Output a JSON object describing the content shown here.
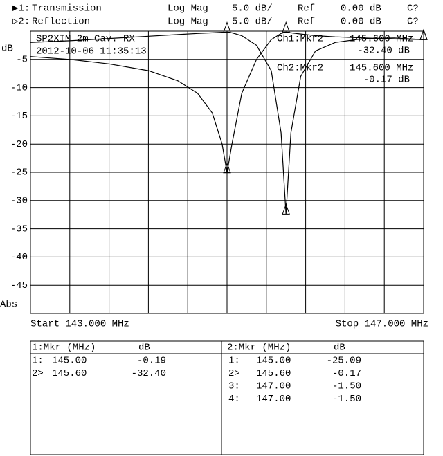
{
  "chart_data": {
    "type": "line",
    "channels": [
      {
        "prefix": "▶1:",
        "format": "Log Mag",
        "scale": "5.0 dB/",
        "ref_label": "Ref",
        "ref": "0.00 dB",
        "cal": "C?"
      },
      {
        "prefix": "▷2:",
        "format": "Log Mag",
        "scale": "5.0 dB/",
        "ref_label": "Ref",
        "ref": "0.00 dB",
        "cal": "C?"
      }
    ],
    "title": "SP2XIM 2m Cav. RX",
    "subtitle": "2012-10-06 11:35:13",
    "ylabel": "dB",
    "ymode": "Abs",
    "start_label": "Start 143.000 MHz",
    "stop_label": "Stop 147.000 MHz",
    "marker_readouts": [
      {
        "name": "Ch1:Mkr2",
        "freq": "145.600 MHz",
        "value": "-32.40 dB"
      },
      {
        "name": "Ch2:Mkr2",
        "freq": "145.600 MHz",
        "value": "-0.17 dB"
      }
    ],
    "x": [
      143,
      143.4,
      143.8,
      144.2,
      144.5,
      144.7,
      144.85,
      144.95,
      145.0,
      145.05,
      145.15,
      145.3,
      145.45,
      145.55,
      145.6,
      145.65,
      145.75,
      145.9,
      146.1,
      146.4,
      146.7,
      147
    ],
    "series": [
      {
        "name": "Transmission",
        "color": "#000000",
        "values": [
          -2.0,
          -1.7,
          -1.3,
          -0.9,
          -0.6,
          -0.4,
          -0.3,
          -0.2,
          -0.19,
          -0.3,
          -0.8,
          -2.5,
          -7,
          -18,
          -32.4,
          -18,
          -8,
          -3.5,
          -2.0,
          -1.3,
          -1.2,
          -1.5
        ]
      },
      {
        "name": "Reflection",
        "color": "#000000",
        "values": [
          -4.5,
          -5,
          -5.8,
          -7,
          -8.8,
          -11,
          -14.5,
          -20,
          -25.09,
          -20,
          -11,
          -5,
          -1.5,
          -0.4,
          -0.17,
          -0.3,
          -0.5,
          -0.8,
          -1.0,
          -1.2,
          -1.4,
          -1.5
        ]
      }
    ],
    "xlim": [
      143,
      147
    ],
    "ylim": [
      -50,
      0
    ],
    "yticks": [
      -5,
      -10,
      -15,
      -20,
      -25,
      -30,
      -35,
      -40,
      -45
    ],
    "grid": true,
    "marker_tables": [
      {
        "title": "1:Mkr (MHz)",
        "unit": "dB",
        "rows": [
          [
            "1:",
            "145.00",
            "-0.19"
          ],
          [
            "2>",
            "145.60",
            "-32.40"
          ]
        ]
      },
      {
        "title": "2:Mkr (MHz)",
        "unit": "dB",
        "rows": [
          [
            "1:",
            "145.00",
            "-25.09"
          ],
          [
            "2>",
            "145.60",
            "-0.17"
          ],
          [
            "3:",
            "147.00",
            "-1.50"
          ],
          [
            "4:",
            "147.00",
            "-1.50"
          ]
        ]
      }
    ]
  }
}
